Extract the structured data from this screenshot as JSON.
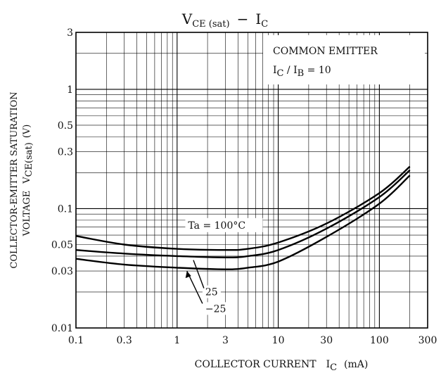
{
  "chart_data": {
    "type": "line",
    "title": {
      "main": "V",
      "main_sub": "CE (sat)",
      "dash": "−",
      "right": "I",
      "right_sub": "C"
    },
    "xlabel": {
      "text": "COLLECTOR CURRENT",
      "symbol": "I",
      "symbol_sub": "C",
      "unit": "(mA)"
    },
    "ylabel": {
      "line1": "COLLECTOR-EMITTER SATURATION",
      "line2_text": "VOLTAGE",
      "line2_symbol": "V",
      "line2_sub": "CE(sat)",
      "line2_unit": "(V)"
    },
    "x_scale": "log",
    "y_scale": "log",
    "xlim": [
      0.1,
      300
    ],
    "ylim": [
      0.01,
      3
    ],
    "x_ticks": [
      0.1,
      0.3,
      1,
      3,
      10,
      30,
      100,
      300
    ],
    "x_tick_labels": [
      "0.1",
      "0.3",
      "1",
      "3",
      "10",
      "30",
      "100",
      "300"
    ],
    "y_ticks": [
      0.01,
      0.03,
      0.05,
      0.1,
      0.3,
      0.5,
      1,
      3
    ],
    "y_tick_labels": [
      "0.01",
      "0.03",
      "0.05",
      "0.1",
      "0.3",
      "0.5",
      "1",
      "3"
    ],
    "grid": true,
    "legend_box": {
      "line1": "COMMON EMITTER",
      "line2_a": "I",
      "line2_a_sub": "C",
      "line2_mid": " / I",
      "line2_b_sub": "B",
      "line2_end": " = 10"
    },
    "series": [
      {
        "name": "Ta = 100°C",
        "x": [
          0.1,
          0.3,
          1,
          3,
          5,
          10,
          30,
          100,
          200
        ],
        "y": [
          0.059,
          0.05,
          0.046,
          0.045,
          0.046,
          0.052,
          0.075,
          0.135,
          0.225
        ]
      },
      {
        "name": "25",
        "x": [
          0.1,
          0.3,
          1,
          3,
          5,
          10,
          30,
          100,
          200
        ],
        "y": [
          0.045,
          0.042,
          0.04,
          0.039,
          0.04,
          0.045,
          0.068,
          0.125,
          0.21
        ]
      },
      {
        "name": "−25",
        "x": [
          0.1,
          0.3,
          1,
          3,
          5,
          10,
          30,
          100,
          200
        ],
        "y": [
          0.038,
          0.034,
          0.032,
          0.031,
          0.032,
          0.036,
          0.058,
          0.11,
          0.19
        ]
      }
    ]
  }
}
